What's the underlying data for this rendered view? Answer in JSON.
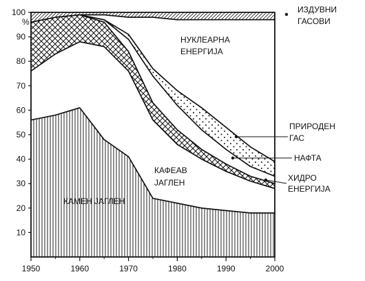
{
  "chart_data": {
    "type": "area",
    "stacked": true,
    "x": [
      1950,
      1955,
      1960,
      1965,
      1970,
      1975,
      1980,
      1985,
      1990,
      1995,
      2000
    ],
    "xlim": [
      1950,
      2000
    ],
    "ylim": [
      0,
      100
    ],
    "y_unit": "%",
    "x_ticks": [
      "1950",
      "1960",
      "1970",
      "1980",
      "1990",
      "2000"
    ],
    "y_ticks": [
      "10",
      "20",
      "30",
      "40",
      "50",
      "60",
      "70",
      "80",
      "90",
      "100"
    ],
    "grid": false,
    "series": [
      {
        "name": "КАМЕН ЈАГЛЕН",
        "pattern": "vertical-hatch",
        "values": [
          56,
          58,
          61,
          48,
          41,
          24,
          22,
          20,
          19,
          18,
          18
        ]
      },
      {
        "name": "КАФЕАВ ЈАГЛЕН",
        "pattern": "blank",
        "values": [
          20,
          25,
          27,
          38,
          35,
          32,
          24,
          20,
          16,
          13,
          10
        ]
      },
      {
        "name": "ХИДРО ЕНЕРГИЈА",
        "pattern": "crosshatch",
        "values": [
          20,
          15,
          11,
          10,
          8,
          7,
          6,
          4,
          3,
          2,
          2
        ]
      },
      {
        "name": "НАФТА",
        "pattern": "blank",
        "values": [
          0,
          0,
          0,
          1,
          5,
          11,
          10,
          8,
          6,
          4,
          3
        ]
      },
      {
        "name": "ПРИРОДЕН ГАС",
        "pattern": "dotted",
        "values": [
          0,
          0,
          0,
          0,
          2,
          3,
          6,
          9,
          9,
          8,
          6
        ]
      },
      {
        "name": "НУКЛЕАРНА ЕНЕРГИЈА",
        "pattern": "blank",
        "values": [
          0,
          0,
          0,
          2,
          7,
          21,
          29,
          36,
          44,
          52,
          58
        ]
      },
      {
        "name": "ИЗДУВНИ ГАСОВИ",
        "pattern": "diagonal-hatch",
        "values": [
          4,
          2,
          1,
          1,
          2,
          2,
          3,
          3,
          3,
          3,
          3
        ]
      }
    ],
    "annotations": [
      {
        "text": "ИЗДУВНИ",
        "series": "ИЗДУВНИ ГАСОВИ"
      },
      {
        "text": "ГАСОВИ",
        "series": "ИЗДУВНИ ГАСОВИ"
      },
      {
        "text": "НУКЛЕАРНА",
        "series": "НУКЛЕАРНА ЕНЕРГИЈА"
      },
      {
        "text": "ЕНЕРГИЈА",
        "series": "НУКЛЕАРНА ЕНЕРГИЈА"
      },
      {
        "text": "ПРИРОДЕН",
        "series": "ПРИРОДЕН ГАС"
      },
      {
        "text": "ГАС",
        "series": "ПРИРОДЕН ГАС"
      },
      {
        "text": "НАФТА",
        "series": "НАФТА"
      },
      {
        "text": "ХИДРО",
        "series": "ХИДРО ЕНЕРГИЈА"
      },
      {
        "text": "ЕНЕРГИЈА",
        "series": "ХИДРО ЕНЕРГИЈА"
      },
      {
        "text": "КАФЕАВ",
        "series": "КАФЕАВ ЈАГЛЕН"
      },
      {
        "text": "ЈАГЛЕН",
        "series": "КАФЕАВ ЈАГЛЕН"
      },
      {
        "text": "КАМЕН ЈАГЛЕН",
        "series": "КАМЕН ЈАГЛЕН"
      }
    ]
  }
}
